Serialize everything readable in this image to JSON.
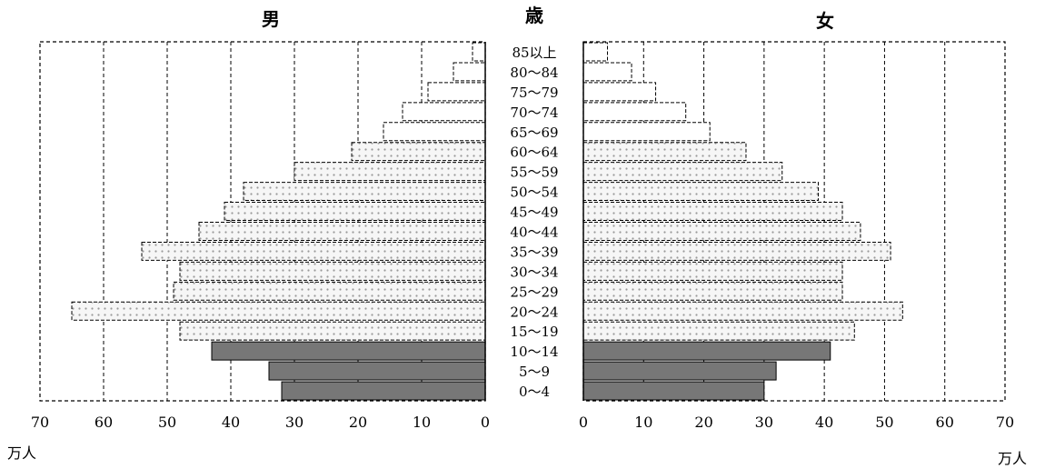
{
  "chart_data": {
    "type": "bar",
    "subtype": "population-pyramid",
    "title_left": "男",
    "title_center": "歳",
    "title_right": "女",
    "unit_left": "万人",
    "unit_right": "万人",
    "xlim": [
      0,
      70
    ],
    "ticks": [
      "0",
      "10",
      "20",
      "30",
      "40",
      "50",
      "60",
      "70"
    ],
    "tick_values": [
      0,
      10,
      20,
      30,
      40,
      50,
      60,
      70
    ],
    "grid": "vertical dashed lines every 10",
    "categories": [
      "0～4",
      "5～9",
      "10～14",
      "15～19",
      "20～24",
      "25～29",
      "30～34",
      "35～39",
      "40～44",
      "45～49",
      "50～54",
      "55～59",
      "60～64",
      "65～69",
      "70～74",
      "75～79",
      "80～84",
      "85以上"
    ],
    "series": [
      {
        "name": "男",
        "values": [
          32,
          34,
          43,
          48,
          65,
          49,
          48,
          54,
          45,
          41,
          38,
          30,
          21,
          16,
          13,
          9,
          5,
          2
        ]
      },
      {
        "name": "女",
        "values": [
          30,
          32,
          41,
          45,
          53,
          43,
          43,
          51,
          46,
          43,
          39,
          33,
          27,
          21,
          17,
          12,
          8,
          4
        ]
      }
    ],
    "fill_styles": {
      "solid_gray": "#777777",
      "dotted_bg": "#f4f4f4",
      "dot_color": "#999999"
    },
    "fill_by_category": [
      "solid",
      "solid",
      "solid",
      "dotted",
      "dotted",
      "dotted",
      "dotted",
      "dotted",
      "dotted",
      "dotted",
      "dotted",
      "dotted",
      "dotted",
      "white",
      "white",
      "white",
      "white",
      "white"
    ]
  }
}
